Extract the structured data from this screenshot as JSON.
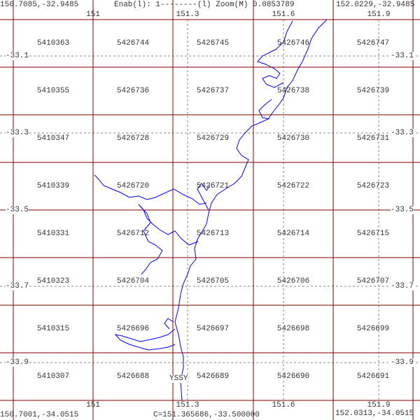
{
  "header": {
    "top_left_coord": "150.7085,-32.9485",
    "status": "Enab(l): 1--------(l) Zoom(M) 0.0853789",
    "top_right_coord": "152.0229,-32.9485"
  },
  "footer": {
    "bottom_left_coord": "150.7001,-34.0515",
    "center_coord": "C=151.365686,-33.500000",
    "bottom_right_coord": "152.0313,-34.0515"
  },
  "lon_ticks": [
    "151",
    "151.3",
    "151.6",
    "151.9"
  ],
  "lat_ticks": [
    "-33.1",
    "-33.3",
    "-33.5",
    "-33.7",
    "-33.9"
  ],
  "cells": [
    [
      "5410363",
      "5426744",
      "5426745",
      "5426746",
      "5426747"
    ],
    [
      "5410355",
      "5426736",
      "5426737",
      "5426738",
      "5426739"
    ],
    [
      "5410347",
      "5426728",
      "5426729",
      "5426730",
      "5426731"
    ],
    [
      "5410339",
      "5426720",
      "5426721",
      "5426722",
      "5426723"
    ],
    [
      "5410331",
      "5426712",
      "5426713",
      "5426714",
      "5426715"
    ],
    [
      "5410323",
      "5426704",
      "5426705",
      "5426706",
      "5426707"
    ],
    [
      "5410315",
      "5426696",
      "5426697",
      "5426698",
      "5426699"
    ],
    [
      "5410307",
      "5426688",
      "5426689",
      "5426690",
      "5426691"
    ]
  ],
  "airport_label": "YSSY",
  "colors": {
    "grid": "#800000",
    "coast": "#0000ff",
    "graticule": "#888888"
  }
}
